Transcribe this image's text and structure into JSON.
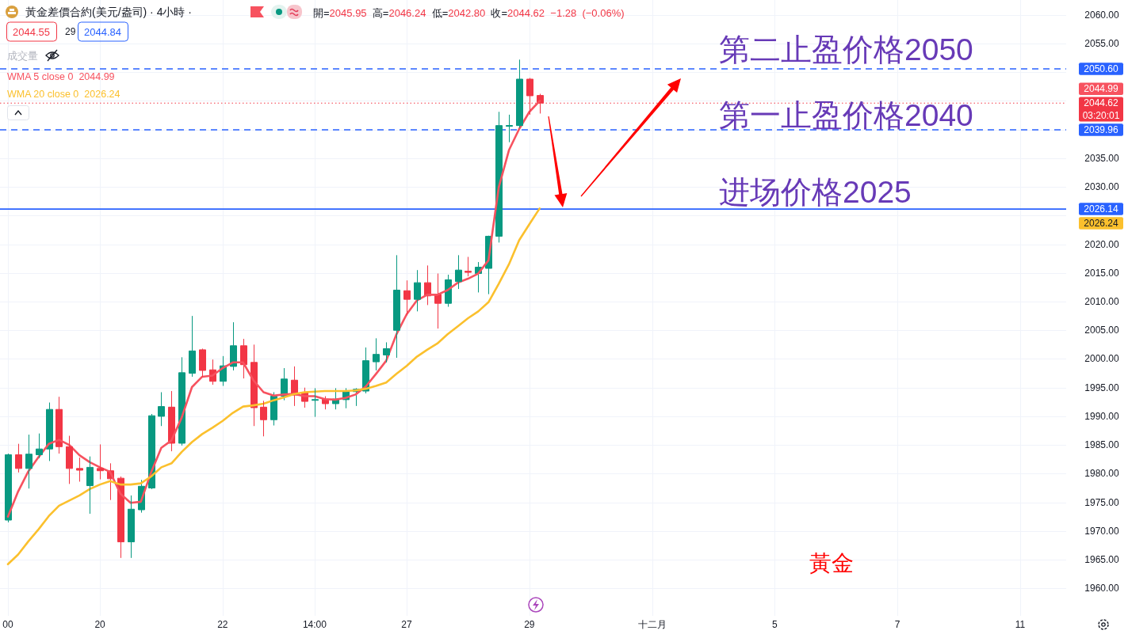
{
  "chart_data": {
    "type": "candlestick",
    "title": "黃金差價合約(美元/盎司) · 4小時 ·",
    "categories": [
      "00",
      null,
      null,
      null,
      null,
      null,
      null,
      null,
      null,
      "20",
      null,
      null,
      null,
      null,
      null,
      null,
      null,
      null,
      null,
      null,
      null,
      "22",
      null,
      null,
      null,
      null,
      null,
      null,
      null,
      null,
      "14:00",
      null,
      null,
      null,
      null,
      null,
      null,
      null,
      null,
      "27",
      null,
      null,
      null,
      null,
      null,
      null,
      null,
      null,
      null,
      null,
      null,
      "29",
      null,
      null,
      null,
      null,
      null,
      null,
      null,
      null,
      null,
      null,
      null,
      "十二月",
      null,
      null,
      null,
      null,
      null,
      null,
      null,
      null,
      null,
      null,
      null,
      "5",
      null,
      null,
      null,
      null,
      null,
      null,
      null,
      null,
      null,
      null,
      null,
      "7",
      null,
      null,
      null,
      null,
      null,
      null,
      null,
      null,
      null,
      null,
      null,
      "11",
      null,
      null,
      null,
      null
    ],
    "ohlc": [
      [
        1971.9,
        1983.5,
        1971.5,
        1983.3
      ],
      [
        1983.3,
        1985.2,
        1980.2,
        1980.9
      ],
      [
        1980.9,
        1986.8,
        1977.4,
        1983.4
      ],
      [
        1983.3,
        1987.0,
        1982.7,
        1984.3
      ],
      [
        1984.3,
        1992.4,
        1982.2,
        1991.2
      ],
      [
        1991.2,
        1993.4,
        1983.5,
        1984.7
      ],
      [
        1984.7,
        1986.6,
        1978.2,
        1980.9
      ],
      [
        1980.9,
        1982.8,
        1978.6,
        1980.6
      ],
      [
        1977.9,
        1983.0,
        1973.0,
        1981.1
      ],
      [
        1980.9,
        1985.1,
        1979.0,
        1980.5
      ],
      [
        1980.5,
        1981.8,
        1975.4,
        1979.1
      ],
      [
        1979.2,
        1979.5,
        1965.3,
        1968.1
      ],
      [
        1968.1,
        1976.2,
        1965.3,
        1973.8
      ],
      [
        1973.7,
        1978.9,
        1973.2,
        1977.8
      ],
      [
        1977.5,
        1990.4,
        1977.3,
        1990.1
      ],
      [
        1990.0,
        1994.2,
        1988.3,
        1991.7
      ],
      [
        1991.6,
        1994.4,
        1983.9,
        1985.3
      ],
      [
        1985.3,
        2000.3,
        1984.9,
        1997.6
      ],
      [
        1997.5,
        2007.5,
        1996.9,
        2001.4
      ],
      [
        2001.6,
        2001.8,
        1996.9,
        1998.0
      ],
      [
        1998.1,
        1999.9,
        1995.5,
        1996.1
      ],
      [
        1996.1,
        2000.5,
        1995.3,
        1998.8
      ],
      [
        1998.7,
        2006.4,
        1998.0,
        2002.3
      ],
      [
        2002.3,
        2003.5,
        1996.6,
        1999.0
      ],
      [
        1999.4,
        2002.5,
        1988.3,
        1991.5
      ],
      [
        1991.6,
        1992.7,
        1986.5,
        1989.4
      ],
      [
        1989.4,
        1994.2,
        1988.4,
        1993.5
      ],
      [
        1993.5,
        1998.4,
        1992.8,
        1996.5
      ],
      [
        1996.3,
        1998.7,
        1991.8,
        1993.7
      ],
      [
        1994.2,
        1995.0,
        1991.5,
        1992.6
      ],
      [
        1992.8,
        1994.9,
        1989.9,
        1992.9
      ],
      [
        1993.0,
        1993.5,
        1991.2,
        1992.2
      ],
      [
        1992.2,
        1994.9,
        1991.2,
        1993.0
      ],
      [
        1992.9,
        1994.9,
        1991.4,
        1994.4
      ],
      [
        1994.3,
        1994.9,
        1991.8,
        1994.7
      ],
      [
        1994.4,
        2002.0,
        1994.0,
        1999.7
      ],
      [
        1999.5,
        2003.6,
        1998.0,
        2000.8
      ],
      [
        2000.7,
        2002.9,
        1999.4,
        2001.8
      ],
      [
        2005.0,
        2018.1,
        2000.2,
        2012.0
      ],
      [
        2011.9,
        2013.7,
        2007.6,
        2010.4
      ],
      [
        2010.4,
        2015.5,
        2008.3,
        2013.3
      ],
      [
        2013.3,
        2016.3,
        2009.4,
        2011.0
      ],
      [
        2011.3,
        2014.9,
        2005.3,
        2009.7
      ],
      [
        2009.7,
        2014.7,
        2009.1,
        2013.8
      ],
      [
        2013.5,
        2018.1,
        2012.2,
        2015.5
      ],
      [
        2015.3,
        2017.8,
        2014.4,
        2015.1
      ],
      [
        2014.9,
        2016.9,
        2011.6,
        2016.0
      ],
      [
        2015.8,
        2021.5,
        2011.3,
        2021.4
      ],
      [
        2021.4,
        2043.1,
        2020.3,
        2040.7
      ],
      [
        2040.6,
        2042.6,
        2037.8,
        2040.7
      ],
      [
        2040.7,
        2052.2,
        2040.3,
        2048.8
      ],
      [
        2048.8,
        2049.0,
        2042.6,
        2045.9
      ],
      [
        2045.95,
        2046.24,
        2042.8,
        2044.62
      ],
      null,
      null,
      null,
      null,
      null,
      null,
      null,
      null,
      null,
      null,
      null,
      null,
      null,
      null,
      null,
      null,
      null,
      null,
      null,
      null,
      null,
      null,
      null,
      null,
      null,
      null,
      null,
      null,
      null,
      null,
      null,
      null,
      null,
      null,
      null,
      null,
      null,
      null,
      null,
      null,
      null,
      null,
      null,
      null,
      null,
      null,
      null,
      null,
      null,
      null,
      null
    ],
    "colors": [
      "#089981",
      "#f23645",
      "#089981",
      "#089981",
      "#089981",
      "#f23645",
      "#f23645",
      "#f23645",
      "#089981",
      "#f23645",
      "#f23645",
      "#f23645",
      "#089981",
      "#089981",
      "#089981",
      "#089981",
      "#f23645",
      "#089981",
      "#089981",
      "#f23645",
      "#f23645",
      "#089981",
      "#089981",
      "#f23645",
      "#f23645",
      "#f23645",
      "#089981",
      "#089981",
      "#f23645",
      "#f23645",
      "#089981",
      "#f23645",
      "#089981",
      "#089981",
      "#089981",
      "#089981",
      "#089981",
      "#089981",
      "#089981",
      "#f23645",
      "#089981",
      "#f23645",
      "#f23645",
      "#089981",
      "#089981",
      "#f23645",
      "#089981",
      "#089981",
      "#089981",
      "#089981",
      "#089981",
      "#f23645",
      "#f23645",
      null,
      null,
      null,
      null,
      null,
      null,
      null,
      null,
      null,
      null,
      null,
      null,
      null,
      null,
      null,
      null,
      null,
      null,
      null,
      null,
      null,
      null,
      null,
      null,
      null,
      null,
      null,
      null,
      null,
      null,
      null,
      null,
      null,
      null,
      null,
      null,
      null,
      null,
      null,
      null,
      null,
      null,
      null,
      null,
      null,
      null,
      null,
      null,
      null,
      null,
      null
    ],
    "series": [
      {
        "name": "WMA 5 close 0",
        "type": "line",
        "color": "#f7525f",
        "values": [
          1972.5,
          1976.9,
          1980.4,
          1982.9,
          1985.2,
          1985.9,
          1985.0,
          1983.2,
          1982.0,
          1981.1,
          1980.3,
          1976.5,
          1974.9,
          1975.1,
          1980.2,
          1984.5,
          1985.8,
          1989.8,
          1995.1,
          1996.9,
          1997.1,
          1998.4,
          1999.4,
          1999.4,
          1996.3,
          1994.2,
          1993.6,
          1993.8,
          1993.9,
          1993.5,
          1993.5,
          1993.0,
          1992.9,
          1993.2,
          1993.8,
          1995.2,
          1997.4,
          1999.7,
          2004.3,
          2007.8,
          2010.2,
          2011.2,
          2011.2,
          2012.0,
          2013.3,
          2014.0,
          2014.9,
          2017.2,
          2029.9,
          2036.4,
          2040.1,
          2043.1,
          2044.99,
          null,
          null,
          null,
          null,
          null,
          null,
          null,
          null,
          null,
          null,
          null,
          null,
          null,
          null,
          null,
          null,
          null,
          null,
          null,
          null,
          null,
          null,
          null,
          null,
          null,
          null,
          null,
          null,
          null,
          null,
          null,
          null,
          null,
          null,
          null,
          null,
          null,
          null,
          null,
          null,
          null,
          null,
          null,
          null,
          null,
          null,
          null,
          null,
          null,
          null,
          null
        ]
      },
      {
        "name": "WMA 20 close 0",
        "type": "line",
        "color": "#fbc02d",
        "values": [
          1964.2,
          1965.9,
          1968.2,
          1970.3,
          1972.6,
          1974.4,
          1975.3,
          1976.2,
          1977.3,
          1978.1,
          1978.7,
          1978.1,
          1978.1,
          1978.3,
          1979.5,
          1981.1,
          1981.8,
          1983.8,
          1985.5,
          1986.9,
          1988.0,
          1989.2,
          1990.6,
          1991.7,
          1991.9,
          1992.2,
          1992.8,
          1993.3,
          1993.9,
          1994.2,
          1994.3,
          1994.4,
          1994.4,
          1994.4,
          1994.5,
          1994.8,
          1995.3,
          1995.9,
          1997.4,
          1998.8,
          2000.4,
          2001.6,
          2002.7,
          2004.3,
          2005.7,
          2007.1,
          2008.3,
          2009.9,
          2013.1,
          2016.5,
          2020.7,
          2023.5,
          2026.24,
          null,
          null,
          null,
          null,
          null,
          null,
          null,
          null,
          null,
          null,
          null,
          null,
          null,
          null,
          null,
          null,
          null,
          null,
          null,
          null,
          null,
          null,
          null,
          null,
          null,
          null,
          null,
          null,
          null,
          null,
          null,
          null,
          null,
          null,
          null,
          null,
          null,
          null,
          null,
          null,
          null,
          null,
          null,
          null,
          null,
          null,
          null,
          null,
          null,
          null,
          null
        ]
      }
    ],
    "ylim": [
      1955.2,
      2062.6
    ],
    "yticks": [
      {
        "value": 1960,
        "label": "1960.00"
      },
      {
        "value": 1965,
        "label": "1965.00"
      },
      {
        "value": 1970,
        "label": "1970.00"
      },
      {
        "value": 1975,
        "label": "1975.00"
      },
      {
        "value": 1980,
        "label": "1980.00"
      },
      {
        "value": 1985,
        "label": "1985.00"
      },
      {
        "value": 1990,
        "label": "1990.00"
      },
      {
        "value": 1995,
        "label": "1995.00"
      },
      {
        "value": 2000,
        "label": "2000.00"
      },
      {
        "value": 2005,
        "label": "2005.00"
      },
      {
        "value": 2010,
        "label": "2010.00"
      },
      {
        "value": 2015,
        "label": "2015.00"
      },
      {
        "value": 2020,
        "label": "2020.00"
      },
      {
        "value": 2025,
        "label": null
      },
      {
        "value": 2030,
        "label": "2030.00"
      },
      {
        "value": 2035,
        "label": "2035.00"
      },
      {
        "value": 2040,
        "label": null
      },
      {
        "value": 2045,
        "label": null
      },
      {
        "value": 2050,
        "label": null
      },
      {
        "value": 2055,
        "label": "2055.00"
      },
      {
        "value": 2060,
        "label": "2060.00"
      }
    ],
    "grid": true,
    "legend": "top left",
    "ref_lines": [
      {
        "axis": "y",
        "value": 2050.6,
        "label": "2050.60",
        "color": "#2962ff",
        "line_style": "dashed"
      },
      {
        "axis": "y",
        "value": 2039.96,
        "label": "2039.96",
        "color": "#2962ff",
        "line_style": "dashed"
      },
      {
        "axis": "y",
        "value": 2026.14,
        "label": "2026.14",
        "color": "#2962ff",
        "line_style": "solid"
      },
      {
        "axis": "y",
        "value": 2044.62,
        "label": "2044.62",
        "color": "#f23645",
        "line_style": "dotted"
      }
    ],
    "annotations": [
      "開=2045.95 高=2046.24 低=2042.80 收=2044.62 −1.28 (−0.06%)",
      "2044.55",
      "29",
      "2044.84",
      "成交量",
      "03:20:01",
      "第二止盈价格2050",
      "第一止盈价格2040",
      "进场价格2025",
      "黃金",
      "2044.99",
      "2026.24"
    ]
  }
}
